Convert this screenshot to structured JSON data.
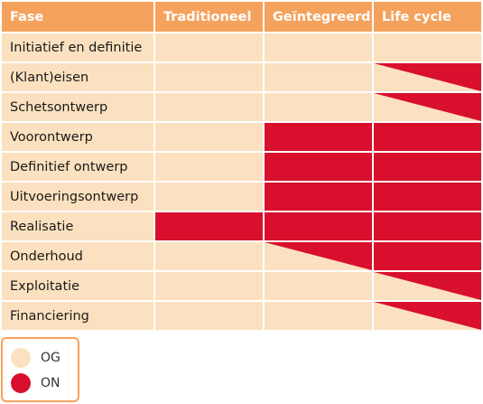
{
  "colors": {
    "header": "#f5a25d",
    "og": "#fbe1bf",
    "on": "#d8102d"
  },
  "header": {
    "phase": "Fase",
    "columns": [
      "Traditioneel",
      "Geïntegreerd",
      "Life cycle"
    ]
  },
  "rows": [
    {
      "phase": "Initiatief en definitie",
      "cells": [
        "OG",
        "OG",
        "OG"
      ]
    },
    {
      "phase": "(Klant)eisen",
      "cells": [
        "OG",
        "OG",
        "OG/ON rising"
      ]
    },
    {
      "phase": "Schetsontwerp",
      "cells": [
        "OG",
        "OG",
        "OG/ON falling"
      ]
    },
    {
      "phase": "Voorontwerp",
      "cells": [
        "OG",
        "ON",
        "ON"
      ]
    },
    {
      "phase": "Definitief ontwerp",
      "cells": [
        "OG",
        "ON",
        "ON"
      ]
    },
    {
      "phase": "Uitvoeringsontwerp",
      "cells": [
        "OG",
        "ON",
        "ON"
      ]
    },
    {
      "phase": "Realisatie",
      "cells": [
        "ON",
        "ON",
        "ON"
      ]
    },
    {
      "phase": "Onderhoud",
      "cells": [
        "OG",
        "OG/ON falling",
        "ON"
      ]
    },
    {
      "phase": "Exploitatie",
      "cells": [
        "OG",
        "OG",
        "OG/ON falling"
      ]
    },
    {
      "phase": "Financiering",
      "cells": [
        "OG",
        "OG",
        "OG/ON rising"
      ]
    }
  ],
  "legend": [
    {
      "label": "OG",
      "key": "og"
    },
    {
      "label": "ON",
      "key": "on"
    }
  ]
}
